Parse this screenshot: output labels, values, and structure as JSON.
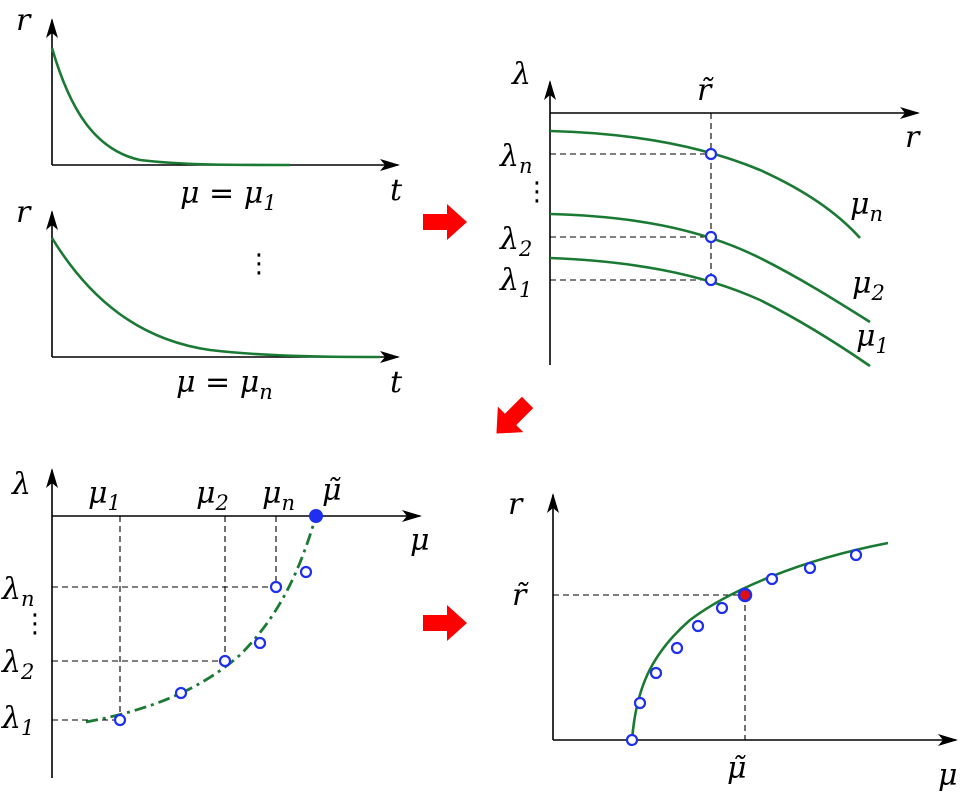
{
  "panel_top_left": {
    "upper_plot": {
      "y_axis": "r",
      "x_axis": "t",
      "caption_lhs": "μ = μ",
      "caption_sub": "1"
    },
    "between_dots": "⋮",
    "lower_plot": {
      "y_axis": "r",
      "x_axis": "t",
      "caption_lhs": "μ = μ",
      "caption_sub": "n"
    }
  },
  "panel_top_right": {
    "y_axis": "λ",
    "x_axis": "r",
    "marker": "r̃",
    "y_ticks": [
      {
        "base": "λ",
        "sub": "n"
      },
      {
        "base": "λ",
        "sub": "2"
      },
      {
        "base": "λ",
        "sub": "1"
      }
    ],
    "tick_dots": "⋮",
    "curve_labels": [
      {
        "base": "μ",
        "sub": "n"
      },
      {
        "base": "μ",
        "sub": "2"
      },
      {
        "base": "μ",
        "sub": "1"
      }
    ]
  },
  "panel_bottom_left": {
    "y_axis": "λ",
    "x_axis": "μ",
    "x_ticks": [
      {
        "base": "μ",
        "sub": "1"
      },
      {
        "base": "μ",
        "sub": "2"
      },
      {
        "base": "μ",
        "sub": "n"
      }
    ],
    "x_marker": "μ̃",
    "y_ticks": [
      {
        "base": "λ",
        "sub": "n"
      },
      {
        "base": "λ",
        "sub": "2"
      },
      {
        "base": "λ",
        "sub": "1"
      }
    ],
    "tick_dots": "⋮"
  },
  "panel_bottom_right": {
    "y_axis": "r",
    "x_axis": "μ",
    "y_marker": "r̃",
    "x_marker": "μ̃"
  },
  "colors": {
    "curve": "#1a7a34",
    "point_outline": "#1f2ff0",
    "highlight_point": "#e01010",
    "arrow": "#ff0000"
  }
}
